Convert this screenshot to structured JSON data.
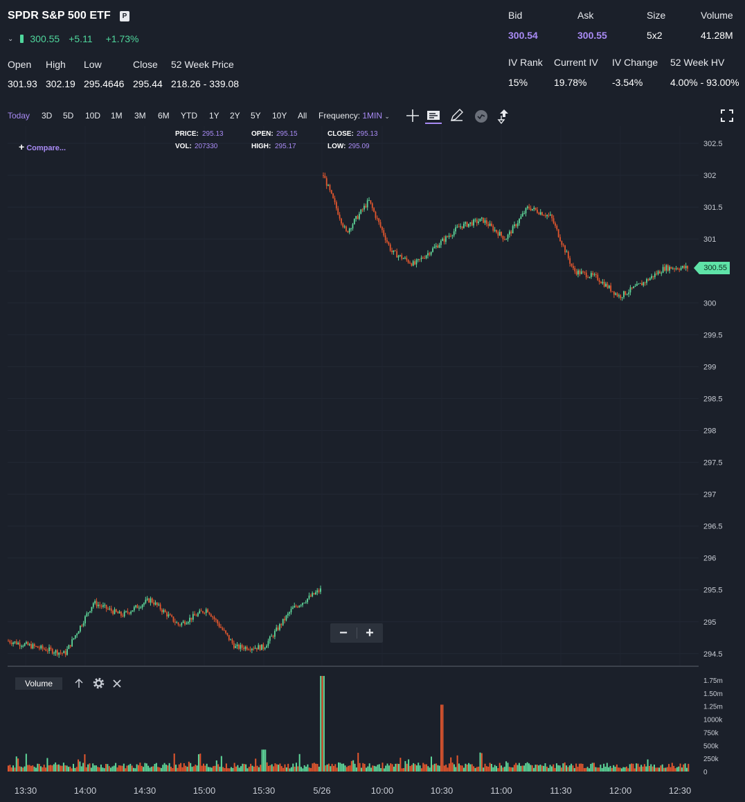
{
  "header": {
    "title": "SPDR S&P 500 ETF",
    "badge": "P",
    "price": "300.55",
    "change": "+5.11",
    "change_pct": "+1.73%",
    "stats": [
      {
        "label": "Open",
        "value": "301.93"
      },
      {
        "label": "High",
        "value": "302.19"
      },
      {
        "label": "Low",
        "value": "295.4646"
      },
      {
        "label": "Close",
        "value": "295.44"
      },
      {
        "label": "52 Week Price",
        "value": "218.26 - 339.08"
      }
    ],
    "quote": [
      {
        "label": "Bid",
        "value": "300.54"
      },
      {
        "label": "Ask",
        "value": "300.55"
      },
      {
        "label": "Size",
        "value": "5x2"
      },
      {
        "label": "Volume",
        "value": "41.28M"
      }
    ],
    "iv": [
      {
        "label": "IV Rank",
        "value": "15%"
      },
      {
        "label": "Current IV",
        "value": "19.78%"
      },
      {
        "label": "IV Change",
        "value": "-3.54%"
      },
      {
        "label": "52 Week HV",
        "value": "4.00% - 93.00%"
      }
    ]
  },
  "toolbar": {
    "timeframes": [
      "Today",
      "3D",
      "5D",
      "10D",
      "1M",
      "3M",
      "6M",
      "YTD",
      "1Y",
      "2Y",
      "5Y",
      "10Y",
      "All"
    ],
    "active_timeframe": "Today",
    "frequency_label": "Frequency:",
    "frequency_value": "1MIN"
  },
  "ohlc_info": {
    "price_label": "PRICE:",
    "price": "295.13",
    "open_label": "OPEN:",
    "open": "295.15",
    "close_label": "CLOSE:",
    "close": "295.13",
    "vol_label": "VOL:",
    "vol": "207330",
    "high_label": "HIGH:",
    "high": "295.17",
    "low_label": "LOW:",
    "low": "295.09"
  },
  "compare_label": "Compare...",
  "current_price_tag": "300.55",
  "volume_panel": {
    "label": "Volume"
  },
  "colors": {
    "up": "#5fd79a",
    "down": "#e4572e",
    "accent": "#a98bf5",
    "background": "#1b202a"
  },
  "chart_data": {
    "type": "candlestick",
    "y_ticks": [
      "302.5",
      "302",
      "301.5",
      "301",
      "300.5",
      "300",
      "299.5",
      "299",
      "298.5",
      "298",
      "297.5",
      "297",
      "296.5",
      "296",
      "295.5",
      "295",
      "294.5"
    ],
    "ylim": [
      294.4,
      302.6
    ],
    "volume_ticks": [
      "1.75m",
      "1.50m",
      "1.25m",
      "1000k",
      "750k",
      "500k",
      "250k",
      "0"
    ],
    "volume_ylim": [
      0,
      1900000
    ],
    "x_ticks": [
      "13:30",
      "14:00",
      "14:30",
      "15:00",
      "15:30",
      "5/26",
      "10:00",
      "10:30",
      "11:00",
      "11:30",
      "12:00",
      "12:30"
    ],
    "segments": [
      {
        "name": "",
        "x": [
          "13:30",
          "13:45",
          "14:00",
          "14:10",
          "14:30",
          "14:45",
          "15:00",
          "15:15",
          "15:30",
          "15:40",
          "15:50",
          "16:00"
        ],
        "close": [
          294.7,
          294.6,
          294.5,
          295.3,
          295.1,
          295.35,
          294.95,
          295.2,
          294.6,
          294.6,
          295.2,
          295.5
        ]
      },
      {
        "name": "",
        "x": [
          "09:30",
          "09:40",
          "09:50",
          "10:00",
          "10:10",
          "10:20",
          "10:30",
          "10:40",
          "10:50",
          "11:00",
          "11:15",
          "11:30",
          "11:40",
          "11:50",
          "12:00",
          "12:15",
          "12:30"
        ],
        "close": [
          302.0,
          301.1,
          301.6,
          300.8,
          300.6,
          300.9,
          301.2,
          301.3,
          301.0,
          301.5,
          301.35,
          300.5,
          300.4,
          300.1,
          300.3,
          300.55,
          300.55
        ]
      }
    ],
    "volume": [
      {
        "x": "13:30",
        "v": 60000
      },
      {
        "x": "14:00",
        "v": 250000
      },
      {
        "x": "14:30",
        "v": 120000
      },
      {
        "x": "15:00",
        "v": 180000
      },
      {
        "x": "15:30",
        "v": 420000
      },
      {
        "x": "16:00",
        "v": 1830000
      },
      {
        "x": "10:00",
        "v": 200000
      },
      {
        "x": "10:30",
        "v": 1280000
      },
      {
        "x": "11:00",
        "v": 200000
      },
      {
        "x": "11:30",
        "v": 260000
      },
      {
        "x": "12:00",
        "v": 150000
      },
      {
        "x": "12:30",
        "v": 110000
      }
    ]
  }
}
